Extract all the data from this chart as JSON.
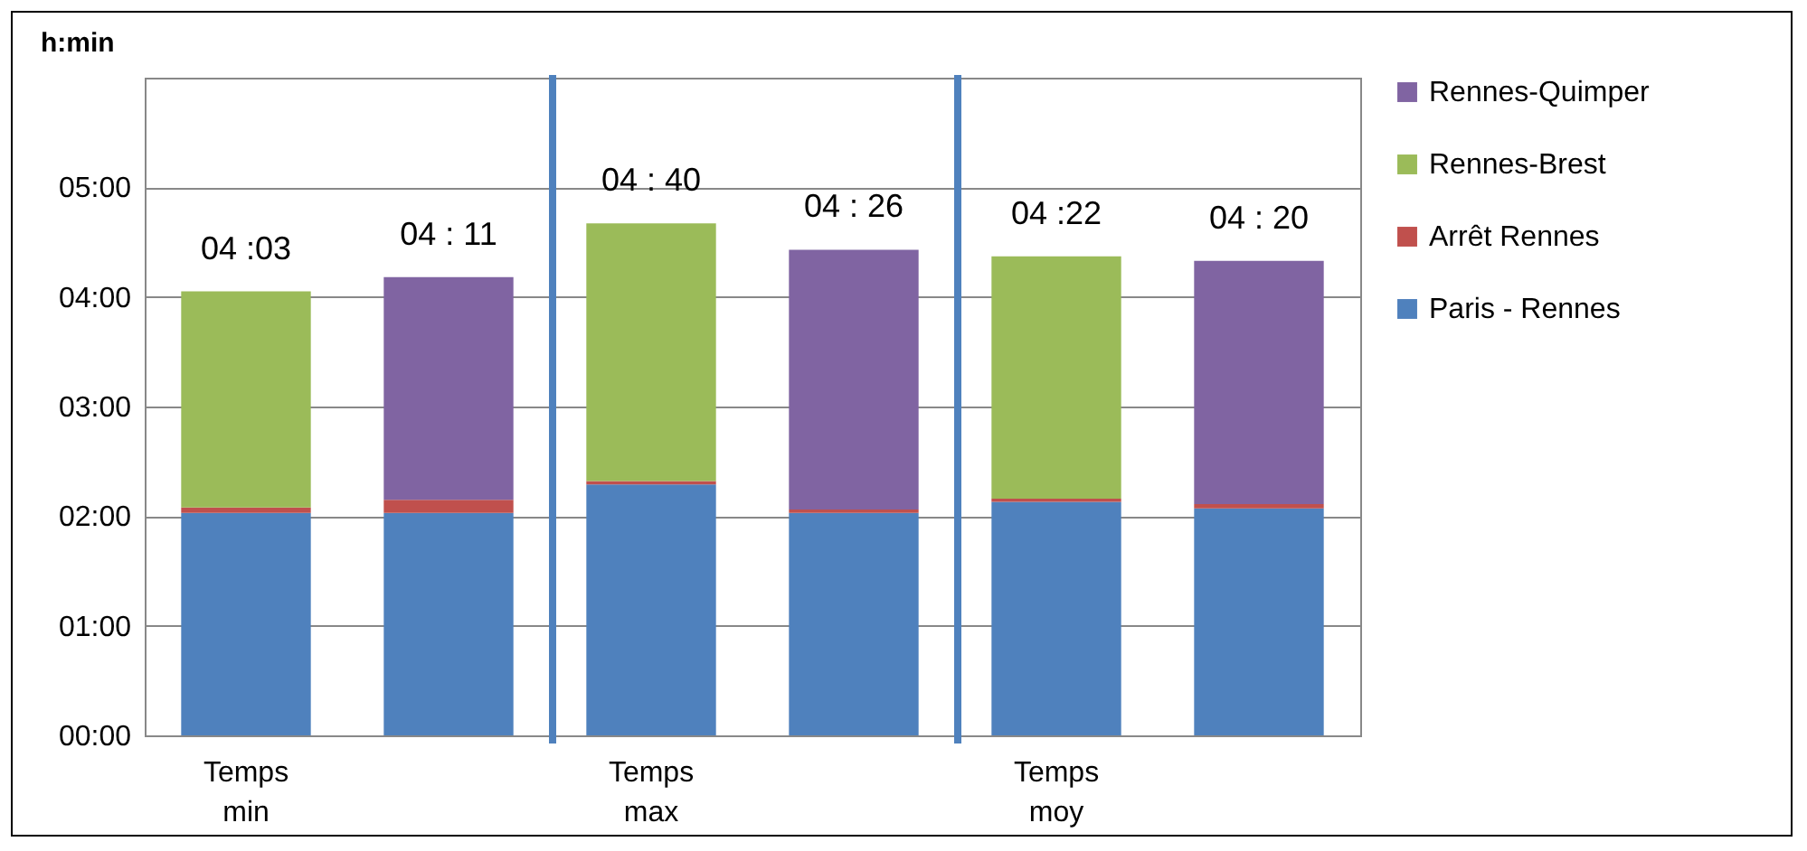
{
  "chart_data": {
    "type": "bar",
    "stacked": true,
    "ylabel": "h:min",
    "categories": [
      "Temps min",
      null,
      "Temps max",
      null,
      "Temps moy",
      null
    ],
    "series": [
      {
        "name": "Paris - Rennes",
        "color": "#4f81bd",
        "values": [
          2.03,
          2.03,
          2.29,
          2.03,
          2.13,
          2.07
        ]
      },
      {
        "name": "Arrêt Rennes",
        "color": "#c0504d",
        "values": [
          0.05,
          0.12,
          0.03,
          0.03,
          0.03,
          0.04
        ]
      },
      {
        "name": "Rennes-Brest",
        "color": "#9bbb59",
        "values": [
          1.97,
          null,
          2.35,
          null,
          2.21,
          null
        ]
      },
      {
        "name": "Rennes-Quimper",
        "color": "#8064a2",
        "values": [
          null,
          2.03,
          null,
          2.37,
          null,
          2.22
        ]
      }
    ],
    "totals": [
      "04 :03",
      "04 : 11",
      "04 : 40",
      "04 : 26",
      "04 :22",
      "04 : 20"
    ],
    "ylim": [
      0,
      6
    ],
    "yticks": [
      {
        "value": 0,
        "label": "00:00"
      },
      {
        "value": 1,
        "label": "01:00"
      },
      {
        "value": 2,
        "label": "02:00"
      },
      {
        "value": 3,
        "label": "03:00"
      },
      {
        "value": 4,
        "label": "04:00"
      },
      {
        "value": 5,
        "label": "05:00"
      }
    ],
    "grid": "y",
    "legend": "right"
  }
}
